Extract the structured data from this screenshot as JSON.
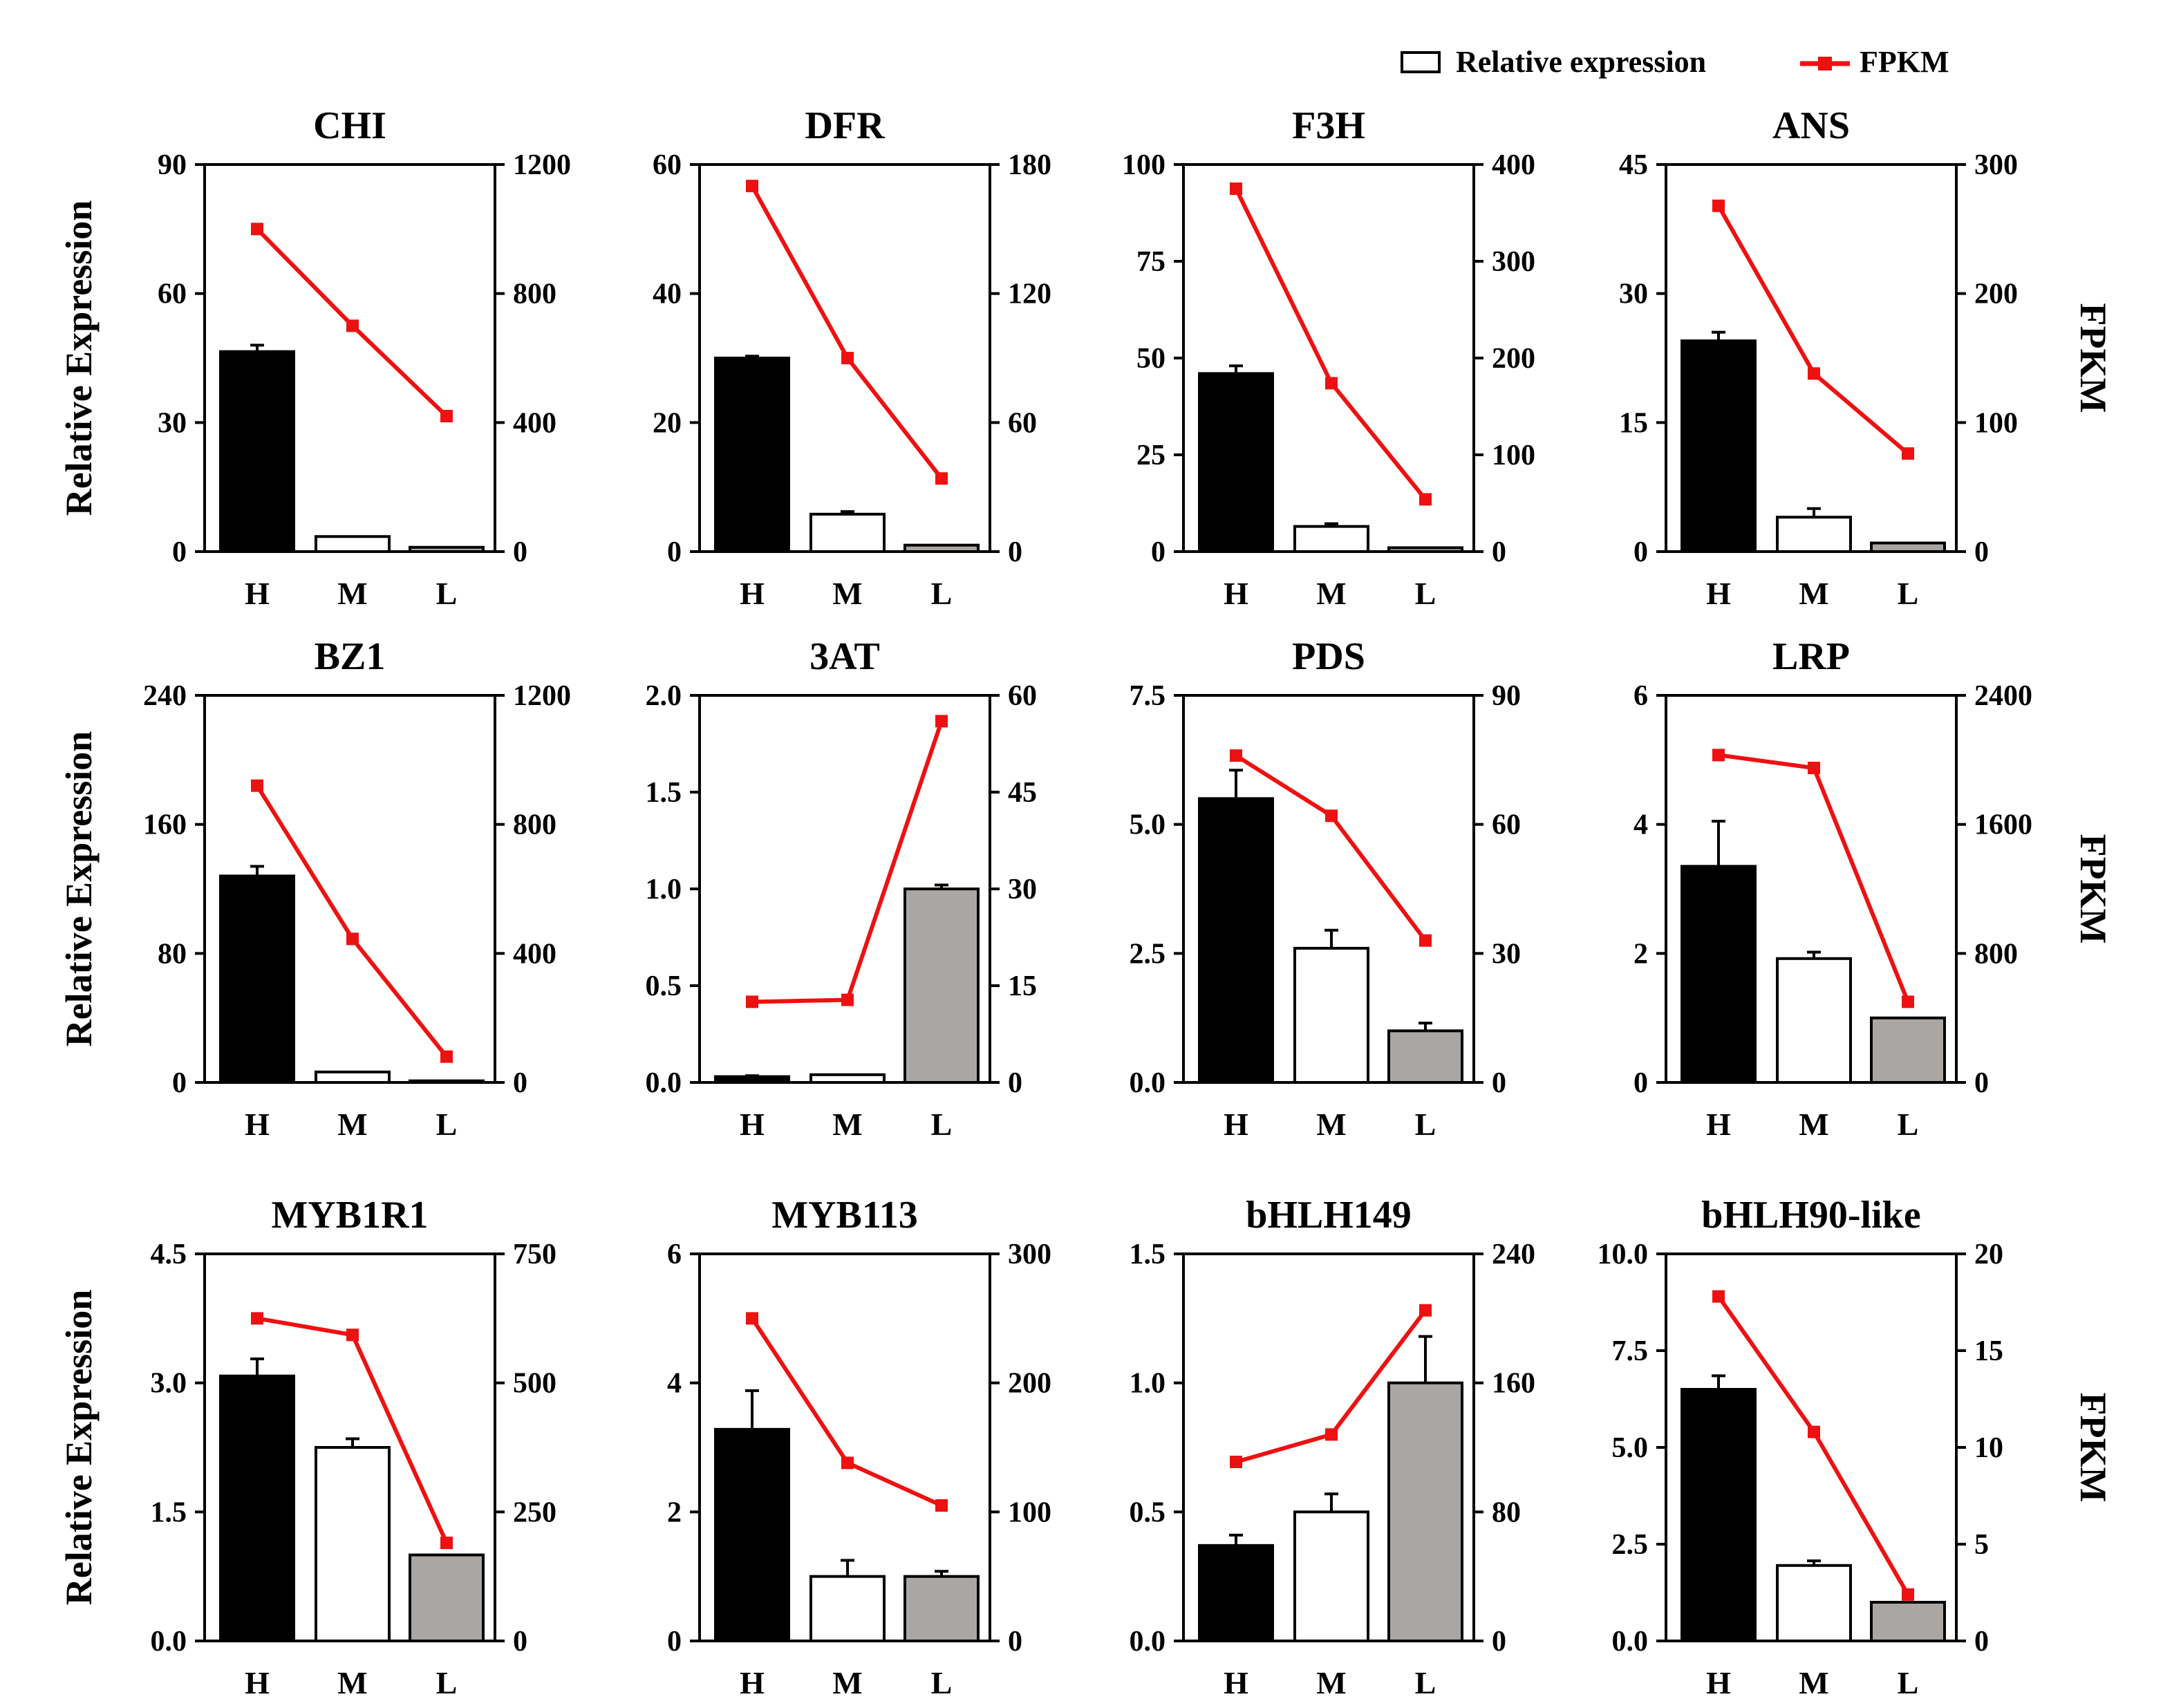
{
  "legend": {
    "bar_label": "Relative expression",
    "line_label": "FPKM"
  },
  "side_labels": {
    "left": "Relative Expression",
    "right": "FPKM"
  },
  "colors": {
    "H": "#000000",
    "M": "#ffffff",
    "L": "#a9a6a4",
    "line": "#ee1111"
  },
  "chart_data": [
    {
      "type": "bar+line",
      "title": "CHI",
      "categories": [
        "H",
        "M",
        "L"
      ],
      "left_ylim": [
        0,
        90
      ],
      "left_ticks": [
        "0",
        "30",
        "60",
        "90"
      ],
      "right_ylim": [
        0,
        1200
      ],
      "right_ticks": [
        "0",
        "400",
        "800",
        "1200"
      ],
      "bar_values": [
        46.5,
        3.5,
        1.0
      ],
      "bar_errors": [
        1.5,
        0,
        0
      ],
      "line_values": [
        1000,
        700,
        420
      ]
    },
    {
      "type": "bar+line",
      "title": "DFR",
      "categories": [
        "H",
        "M",
        "L"
      ],
      "left_ylim": [
        0,
        60
      ],
      "left_ticks": [
        "0",
        "20",
        "40",
        "60"
      ],
      "right_ylim": [
        0,
        180
      ],
      "right_ticks": [
        "0",
        "60",
        "120",
        "180"
      ],
      "bar_values": [
        30.0,
        5.8,
        1.0
      ],
      "bar_errors": [
        0.3,
        0.4,
        0
      ],
      "line_values": [
        170,
        90,
        34
      ]
    },
    {
      "type": "bar+line",
      "title": "F3H",
      "categories": [
        "H",
        "M",
        "L"
      ],
      "left_ylim": [
        0,
        100
      ],
      "left_ticks": [
        "0",
        "25",
        "50",
        "75",
        "100"
      ],
      "right_ylim": [
        0,
        400
      ],
      "right_ticks": [
        "0",
        "100",
        "200",
        "300",
        "400"
      ],
      "bar_values": [
        46.0,
        6.5,
        1.0
      ],
      "bar_errors": [
        2.0,
        0.7,
        0
      ],
      "line_values": [
        375,
        174,
        54
      ]
    },
    {
      "type": "bar+line",
      "title": "ANS",
      "categories": [
        "H",
        "M",
        "L"
      ],
      "left_ylim": [
        0,
        45
      ],
      "left_ticks": [
        "0",
        "15",
        "30",
        "45"
      ],
      "right_ylim": [
        0,
        300
      ],
      "right_ticks": [
        "0",
        "100",
        "200",
        "300"
      ],
      "bar_values": [
        24.5,
        4.0,
        1.0
      ],
      "bar_errors": [
        1.0,
        1.0,
        0
      ],
      "line_values": [
        268,
        138,
        76
      ]
    },
    {
      "type": "bar+line",
      "title": "BZ1",
      "categories": [
        "H",
        "M",
        "L"
      ],
      "left_ylim": [
        0,
        240
      ],
      "left_ticks": [
        "0",
        "80",
        "160",
        "240"
      ],
      "right_ylim": [
        0,
        1200
      ],
      "right_ticks": [
        "0",
        "400",
        "800",
        "1200"
      ],
      "bar_values": [
        128,
        6.5,
        1.0
      ],
      "bar_errors": [
        6,
        0,
        0
      ],
      "line_values": [
        920,
        445,
        80
      ]
    },
    {
      "type": "bar+line",
      "title": "3AT",
      "categories": [
        "H",
        "M",
        "L"
      ],
      "left_ylim": [
        0,
        2.0
      ],
      "left_ticks": [
        "0.0",
        "0.5",
        "1.0",
        "1.5",
        "2.0"
      ],
      "right_ylim": [
        0,
        60
      ],
      "right_ticks": [
        "0",
        "15",
        "30",
        "45",
        "60"
      ],
      "bar_values": [
        0.03,
        0.04,
        1.0
      ],
      "bar_errors": [
        0.005,
        0,
        0.02
      ],
      "line_values": [
        12.5,
        12.8,
        56
      ]
    },
    {
      "type": "bar+line",
      "title": "PDS",
      "categories": [
        "H",
        "M",
        "L"
      ],
      "left_ylim": [
        0,
        7.5
      ],
      "left_ticks": [
        "0.0",
        "2.5",
        "5.0",
        "7.5"
      ],
      "right_ylim": [
        0,
        90
      ],
      "right_ticks": [
        "0",
        "30",
        "60",
        "90"
      ],
      "bar_values": [
        5.5,
        2.6,
        1.0
      ],
      "bar_errors": [
        0.55,
        0.35,
        0.15
      ],
      "line_values": [
        76,
        62,
        33
      ]
    },
    {
      "type": "bar+line",
      "title": "LRP",
      "categories": [
        "H",
        "M",
        "L"
      ],
      "left_ylim": [
        0,
        6
      ],
      "left_ticks": [
        "0",
        "2",
        "4",
        "6"
      ],
      "right_ylim": [
        0,
        2400
      ],
      "right_ticks": [
        "0",
        "800",
        "1600",
        "2400"
      ],
      "bar_values": [
        3.35,
        1.92,
        1.0
      ],
      "bar_errors": [
        0.7,
        0.1,
        0
      ],
      "line_values": [
        2030,
        1950,
        500
      ]
    },
    {
      "type": "bar+line",
      "title": "MYB1R1",
      "categories": [
        "H",
        "M",
        "L"
      ],
      "left_ylim": [
        0,
        4.5
      ],
      "left_ticks": [
        "0.0",
        "1.5",
        "3.0",
        "4.5"
      ],
      "right_ylim": [
        0,
        750
      ],
      "right_ticks": [
        "0",
        "250",
        "500",
        "750"
      ],
      "bar_values": [
        3.08,
        2.25,
        1.0
      ],
      "bar_errors": [
        0.2,
        0.1,
        0
      ],
      "line_values": [
        625,
        593,
        190
      ]
    },
    {
      "type": "bar+line",
      "title": "MYB113",
      "categories": [
        "H",
        "M",
        "L"
      ],
      "left_ylim": [
        0,
        6
      ],
      "left_ticks": [
        "0",
        "2",
        "4",
        "6"
      ],
      "right_ylim": [
        0,
        300
      ],
      "right_ticks": [
        "0",
        "100",
        "200",
        "300"
      ],
      "bar_values": [
        3.28,
        1.0,
        1.0
      ],
      "bar_errors": [
        0.6,
        0.25,
        0.08
      ],
      "line_values": [
        250,
        138,
        105
      ]
    },
    {
      "type": "bar+line",
      "title": "bHLH149",
      "categories": [
        "H",
        "M",
        "L"
      ],
      "left_ylim": [
        0,
        1.5
      ],
      "left_ticks": [
        "0.0",
        "0.5",
        "1.0",
        "1.5"
      ],
      "right_ylim": [
        0,
        240
      ],
      "right_ticks": [
        "0",
        "80",
        "160",
        "240"
      ],
      "bar_values": [
        0.37,
        0.5,
        1.0
      ],
      "bar_errors": [
        0.04,
        0.07,
        0.18
      ],
      "line_values": [
        111,
        128,
        205
      ]
    },
    {
      "type": "bar+line",
      "title": "bHLH90-like",
      "categories": [
        "H",
        "M",
        "L"
      ],
      "left_ylim": [
        0,
        10.0
      ],
      "left_ticks": [
        "0.0",
        "2.5",
        "5.0",
        "7.5",
        "10.0"
      ],
      "right_ylim": [
        0,
        20
      ],
      "right_ticks": [
        "0",
        "5",
        "10",
        "15",
        "20"
      ],
      "bar_values": [
        6.5,
        1.95,
        1.0
      ],
      "bar_errors": [
        0.35,
        0.12,
        0
      ],
      "line_values": [
        17.8,
        10.8,
        2.4
      ]
    }
  ]
}
